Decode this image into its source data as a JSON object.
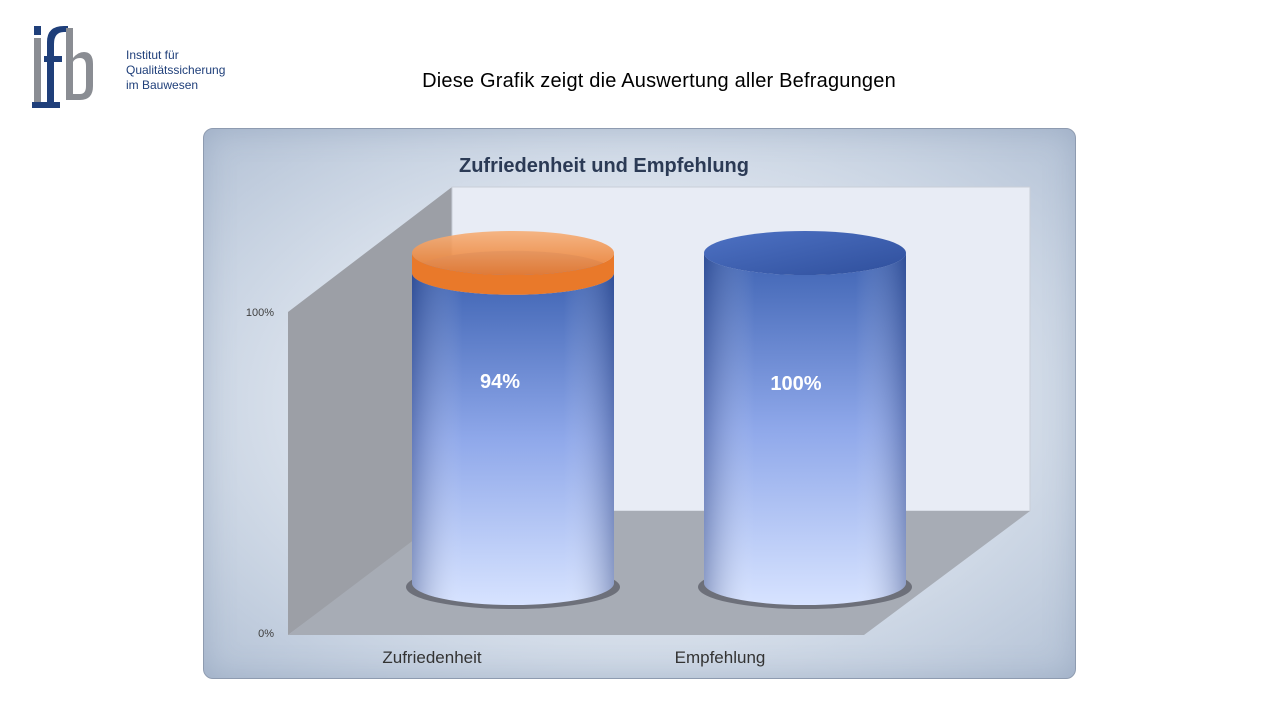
{
  "logo": {
    "mark": "ifb",
    "lines": [
      "Institut für",
      "Qualitätssicherung",
      "im Bauwesen"
    ]
  },
  "slide_title": "Diese Grafik zeigt die Auswertung aller Befragungen",
  "colors": {
    "cylinder_blue_top": "#3e63b3",
    "cylinder_blue_bottom": "#d7e3ff",
    "cap_orange": "#ef8a3c",
    "floor": "#a7acb5",
    "back_wall": "#e8ecf5",
    "side_wall": "#9c9fa6"
  },
  "chart_data": {
    "type": "bar",
    "title": "Zufriedenheit und Empfehlung",
    "categories": [
      "Zufriedenheit",
      "Empfehlung"
    ],
    "values": [
      94,
      100
    ],
    "data_labels": [
      "94%",
      "100%"
    ],
    "y_ticks": [
      "0%",
      "100%"
    ],
    "ylim": [
      0,
      100
    ],
    "grid": false,
    "shape": "3d-cylinder"
  }
}
